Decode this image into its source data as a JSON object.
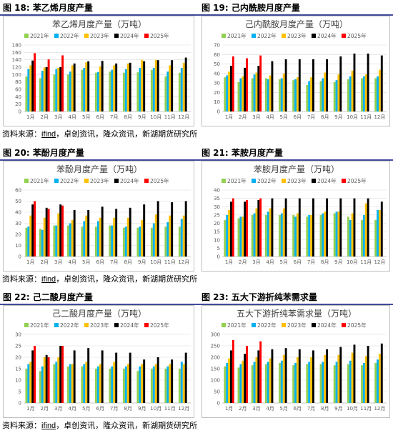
{
  "figures": [
    {
      "fig_label": "图 18:",
      "fig_title": "苯乙烯月度产量"
    },
    {
      "fig_label": "图 19:",
      "fig_title": "己内酰胺月度产量"
    },
    {
      "fig_label": "图 20:",
      "fig_title": "苯酚月度产量"
    },
    {
      "fig_label": "图 21:",
      "fig_title": "苯胺月度产量"
    },
    {
      "fig_label": "图 22:",
      "fig_title": "己二酸月度产量"
    },
    {
      "fig_label": "图 23:",
      "fig_title": "五大下游折纯苯需求量"
    }
  ],
  "sources": [
    {
      "prefix": "资料来源：",
      "ifind": "ifind",
      "rest": "，卓创资讯，隆众资讯，新湖期货研究所"
    },
    {
      "prefix": "资料来源：",
      "ifind": "ifind",
      "rest": "，卓创资讯，隆众资讯，新湖期货研究所"
    },
    {
      "prefix": "资料来源：",
      "ifind": "ifind",
      "rest": "，卓创资讯，隆众资讯，新湖期货研究所"
    }
  ],
  "series_colors": [
    "#92d050",
    "#00b0f0",
    "#ffc000",
    "#000000",
    "#ff0000"
  ],
  "chart_data": [
    {
      "type": "bar",
      "title": "苯乙烯月度产量（万吨）",
      "categories": [
        "1月",
        "2月",
        "3月",
        "4月",
        "5月",
        "6月",
        "7月",
        "8月",
        "9月",
        "10月",
        "11月",
        "12月"
      ],
      "ylim": [
        0,
        180
      ],
      "yticks": [
        0,
        20,
        40,
        60,
        80,
        100,
        120,
        140,
        160,
        180
      ],
      "grid": true,
      "legend": "top",
      "series": [
        {
          "name": "2021年",
          "values": [
            95,
            90,
            100,
            100,
            113,
            105,
            108,
            105,
            106,
            113,
            95,
            105
          ]
        },
        {
          "name": "2022年",
          "values": [
            115,
            110,
            115,
            108,
            118,
            107,
            113,
            115,
            118,
            118,
            108,
            118
          ]
        },
        {
          "name": "2023年",
          "values": [
            125,
            119,
            118,
            125,
            133,
            122,
            125,
            130,
            140,
            140,
            125,
            132
          ]
        },
        {
          "name": "2024年",
          "values": [
            138,
            120,
            120,
            130,
            136,
            137,
            130,
            132,
            136,
            139,
            139,
            146
          ]
        },
        {
          "name": "2025年",
          "values": [
            158,
            141,
            152,
            null,
            null,
            null,
            null,
            null,
            null,
            null,
            null,
            null
          ]
        }
      ]
    },
    {
      "type": "bar",
      "title": "己内酰胺月度产量（万吨）",
      "categories": [
        "1月",
        "2月",
        "3月",
        "4月",
        "5月",
        "6月",
        "7月",
        "8月",
        "9月",
        "10月",
        "11月",
        "12月"
      ],
      "ylim": [
        0,
        70
      ],
      "yticks": [
        0,
        10,
        20,
        30,
        40,
        50,
        60,
        70
      ],
      "grid": true,
      "legend": "top",
      "series": [
        {
          "name": "2021年",
          "values": [
            36,
            31,
            35,
            35,
            34,
            33,
            28,
            32,
            31,
            34,
            35,
            35
          ]
        },
        {
          "name": "2022年",
          "values": [
            38,
            35,
            39,
            34,
            35,
            34,
            32,
            35,
            33,
            37,
            37,
            37
          ]
        },
        {
          "name": "2023年",
          "values": [
            42,
            37,
            41,
            38,
            40,
            36,
            36,
            41,
            39,
            43,
            39,
            44
          ]
        },
        {
          "name": "2024年",
          "values": [
            48,
            46,
            48,
            53,
            55,
            55,
            55,
            55,
            58,
            61,
            61,
            59
          ]
        },
        {
          "name": "2025年",
          "values": [
            58,
            56,
            59,
            null,
            null,
            null,
            null,
            null,
            null,
            null,
            null,
            null
          ]
        }
      ]
    },
    {
      "type": "bar",
      "title": "苯酚月度产量（万吨）",
      "categories": [
        "1月",
        "2月",
        "3月",
        "4月",
        "5月",
        "6月",
        "7月",
        "8月",
        "9月",
        "10月",
        "11月",
        "12月"
      ],
      "ylim": [
        0,
        60
      ],
      "yticks": [
        0,
        10,
        20,
        30,
        40,
        50,
        60
      ],
      "grid": true,
      "legend": "top",
      "series": [
        {
          "name": "2021年",
          "values": [
            26,
            25,
            28,
            28,
            27,
            27,
            28,
            26,
            26,
            26,
            27,
            27
          ]
        },
        {
          "name": "2022年",
          "values": [
            27,
            24,
            28,
            30,
            32,
            32,
            28,
            27,
            27,
            30,
            31,
            34
          ]
        },
        {
          "name": "2023年",
          "values": [
            37,
            35,
            39,
            33,
            37,
            35,
            35,
            35,
            33,
            38,
            37,
            37
          ]
        },
        {
          "name": "2024年",
          "values": [
            47,
            44,
            47,
            42,
            42,
            45,
            43,
            44,
            47,
            50,
            49,
            50
          ]
        },
        {
          "name": "2025年",
          "values": [
            50,
            43,
            46,
            null,
            null,
            null,
            null,
            null,
            null,
            null,
            null,
            null
          ]
        }
      ]
    },
    {
      "type": "bar",
      "title": "苯胺月度产量（万吨）",
      "categories": [
        "1月",
        "2月",
        "3月",
        "4月",
        "5月",
        "6月",
        "7月",
        "8月",
        "9月",
        "10月",
        "11月",
        "12月"
      ],
      "ylim": [
        0,
        40
      ],
      "yticks": [
        0,
        5,
        10,
        15,
        20,
        25,
        30,
        35,
        40
      ],
      "grid": true,
      "legend": "top",
      "series": [
        {
          "name": "2021年",
          "values": [
            22,
            23,
            25,
            25,
            25,
            25,
            24,
            25,
            26,
            24,
            22,
            22
          ]
        },
        {
          "name": "2022年",
          "values": [
            25,
            24,
            26,
            27,
            26,
            24,
            25,
            26,
            27,
            22,
            25,
            28
          ]
        },
        {
          "name": "2023年",
          "values": [
            28,
            24,
            29,
            29,
            29,
            26,
            25,
            27,
            27,
            26,
            32,
            28
          ]
        },
        {
          "name": "2024年",
          "values": [
            33,
            33,
            34,
            35,
            35,
            35,
            35,
            35,
            35,
            35,
            35,
            33
          ]
        },
        {
          "name": "2025年",
          "values": [
            35,
            34,
            35,
            null,
            null,
            null,
            null,
            null,
            null,
            null,
            null,
            null
          ]
        }
      ]
    },
    {
      "type": "bar",
      "title": "己二酸月度产量（万吨）",
      "categories": [
        "1月",
        "2月",
        "3月",
        "4月",
        "5月",
        "6月",
        "7月",
        "8月",
        "9月",
        "10月",
        "11月",
        "12月"
      ],
      "ylim": [
        0,
        30
      ],
      "yticks": [
        0,
        5,
        10,
        15,
        20,
        25,
        30
      ],
      "grid": true,
      "legend": "top",
      "series": [
        {
          "name": "2021年",
          "values": [
            15,
            14,
            17,
            16,
            16,
            15,
            15,
            15,
            14,
            15,
            15,
            15
          ]
        },
        {
          "name": "2022年",
          "values": [
            17,
            16,
            18,
            17,
            17,
            16,
            16,
            16,
            16,
            16,
            16,
            18
          ]
        },
        {
          "name": "2023年",
          "values": [
            18,
            20,
            20,
            17,
            18,
            17,
            18,
            17,
            17,
            17,
            17,
            17
          ]
        },
        {
          "name": "2024年",
          "values": [
            23,
            21,
            25,
            23,
            24,
            23,
            22,
            22,
            19,
            20,
            19,
            22
          ]
        },
        {
          "name": "2025年",
          "values": [
            25,
            20,
            25,
            null,
            null,
            null,
            null,
            null,
            null,
            null,
            null,
            null
          ]
        }
      ]
    },
    {
      "type": "bar",
      "title": "五大下游折纯苯需求量（万吨）",
      "categories": [
        "1月",
        "2月",
        "3月",
        "4月",
        "5月",
        "6月",
        "7月",
        "8月",
        "9月",
        "10月",
        "11月",
        "12月"
      ],
      "ylim": [
        0,
        300
      ],
      "yticks": [
        0,
        50,
        100,
        150,
        200,
        250,
        300
      ],
      "grid": true,
      "legend": "top",
      "series": [
        {
          "name": "2021年",
          "values": [
            160,
            155,
            165,
            170,
            175,
            165,
            170,
            170,
            165,
            170,
            165,
            175
          ]
        },
        {
          "name": "2022年",
          "values": [
            175,
            170,
            180,
            180,
            185,
            175,
            180,
            180,
            180,
            185,
            175,
            190
          ]
        },
        {
          "name": "2023年",
          "values": [
            195,
            185,
            200,
            195,
            210,
            200,
            200,
            210,
            210,
            220,
            205,
            215
          ]
        },
        {
          "name": "2024年",
          "values": [
            230,
            215,
            230,
            235,
            240,
            235,
            230,
            235,
            245,
            255,
            250,
            260
          ]
        },
        {
          "name": "2025年",
          "values": [
            275,
            250,
            270,
            null,
            null,
            null,
            null,
            null,
            null,
            null,
            null,
            null
          ]
        }
      ]
    }
  ]
}
